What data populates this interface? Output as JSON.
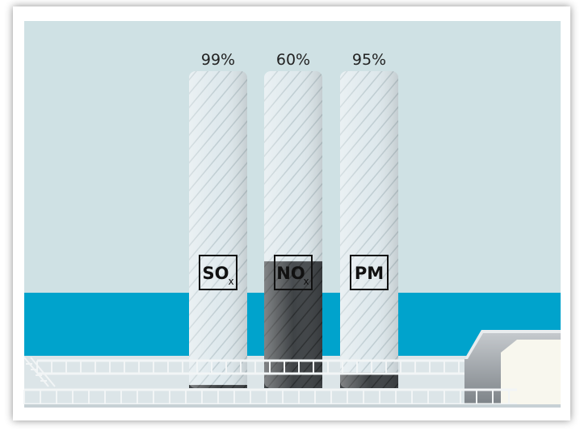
{
  "chart_data": {
    "type": "bar",
    "categories": [
      "SO",
      "NO",
      "PM"
    ],
    "category_subscripts": [
      "x",
      "x",
      ""
    ],
    "values": [
      99,
      60,
      95
    ],
    "data_labels": [
      "99%",
      "60%",
      "95%"
    ],
    "ylim": [
      0,
      100
    ]
  },
  "colors": {
    "sky": "#cfe1e4",
    "sea": "#00a3cc",
    "chimney_light": "#dfe9ed",
    "chimney_dark": "#3f4346",
    "rail": "#f2f5f6",
    "hull": "#f8f7ee"
  }
}
